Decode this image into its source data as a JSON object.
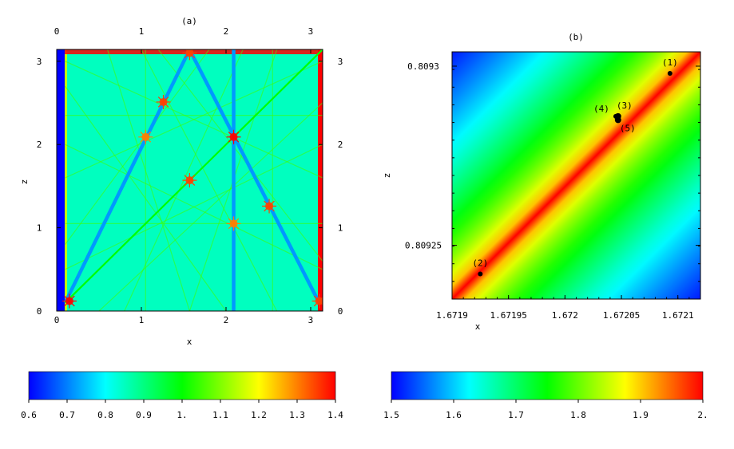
{
  "chart_data": [
    {
      "type": "heatmap",
      "panel_label": "(a)",
      "xlabel": "x",
      "ylabel": "z",
      "xlim": [
        0,
        3.1416
      ],
      "ylim": [
        0,
        3.1416
      ],
      "x_ticks": [
        "0",
        "1",
        "2",
        "3"
      ],
      "y_ticks": [
        "0",
        "1",
        "2",
        "3"
      ],
      "x_tick_values": [
        0,
        1,
        2,
        3
      ],
      "y_tick_values": [
        0,
        1,
        2,
        3
      ],
      "colorscale": [
        "#0000ff",
        "#00ffff",
        "#00ff00",
        "#ffff00",
        "#ff0000"
      ],
      "background_value": 0.85,
      "lines": [
        {
          "value": 0.72,
          "points": [
            [
              0.1,
              0.1
            ],
            [
              1.57,
              3.14
            ]
          ]
        },
        {
          "value": 0.72,
          "points": [
            [
              1.57,
              3.14
            ],
            [
              3.1,
              0.1
            ]
          ]
        },
        {
          "value": 0.72,
          "points": [
            [
              2.09,
              3.14
            ],
            [
              2.09,
              0.0
            ]
          ]
        },
        {
          "value": 1.0,
          "points": [
            [
              0.1,
              0.1
            ],
            [
              3.14,
              3.14
            ]
          ]
        }
      ],
      "hotspots": [
        {
          "x": 0.15,
          "y": 0.12,
          "value": 1.4
        },
        {
          "x": 2.09,
          "y": 2.09,
          "value": 1.4
        },
        {
          "x": 1.26,
          "y": 2.51,
          "value": 1.35
        },
        {
          "x": 1.57,
          "y": 1.57,
          "value": 1.35
        },
        {
          "x": 2.51,
          "y": 1.26,
          "value": 1.35
        },
        {
          "x": 1.57,
          "y": 3.1,
          "value": 1.35
        },
        {
          "x": 3.1,
          "y": 0.12,
          "value": 1.35
        },
        {
          "x": 2.09,
          "y": 1.05,
          "value": 1.3
        },
        {
          "x": 1.05,
          "y": 2.09,
          "value": 1.3
        }
      ],
      "colorbar": {
        "ticks": [
          "0.6",
          "0.7",
          "0.8",
          "0.9",
          "1.",
          "1.1",
          "1.2",
          "1.3",
          "1.4"
        ],
        "range": [
          0.6,
          1.4
        ]
      }
    },
    {
      "type": "heatmap",
      "panel_label": "(b)",
      "xlabel": "x",
      "ylabel": "z",
      "xlim": [
        1.6719,
        1.67212
      ],
      "ylim": [
        0.809235,
        0.809304
      ],
      "x_ticks": [
        "1.6719",
        "1.67195",
        "1.672",
        "1.67205",
        "1.6721"
      ],
      "y_ticks": [
        "0.8093",
        "0.80925"
      ],
      "x_tick_values": [
        1.6719,
        1.67195,
        1.672,
        1.67205,
        1.6721
      ],
      "y_tick_values": [
        0.8093,
        0.80925
      ],
      "colorscale": [
        "#0000ff",
        "#00ffff",
        "#00ff00",
        "#ffff00",
        "#ff0000"
      ],
      "ridge": {
        "from": [
          1.6719,
          0.809235
        ],
        "to": [
          1.67212,
          0.809304
        ],
        "max_value": 2.0,
        "min_value": 1.5
      },
      "points": [
        {
          "label": "(1)",
          "x": 1.672093,
          "y": 0.809298
        },
        {
          "label": "(2)",
          "x": 1.671925,
          "y": 0.809242
        },
        {
          "label": "(3)",
          "x": 1.672047,
          "y": 0.809286
        },
        {
          "label": "(4)",
          "x": 1.672045,
          "y": 0.809286
        },
        {
          "label": "(5)",
          "x": 1.672047,
          "y": 0.809285
        }
      ],
      "colorbar": {
        "ticks": [
          "1.5",
          "1.6",
          "1.7",
          "1.8",
          "1.9",
          "2."
        ],
        "range": [
          1.5,
          2.0
        ]
      }
    }
  ]
}
